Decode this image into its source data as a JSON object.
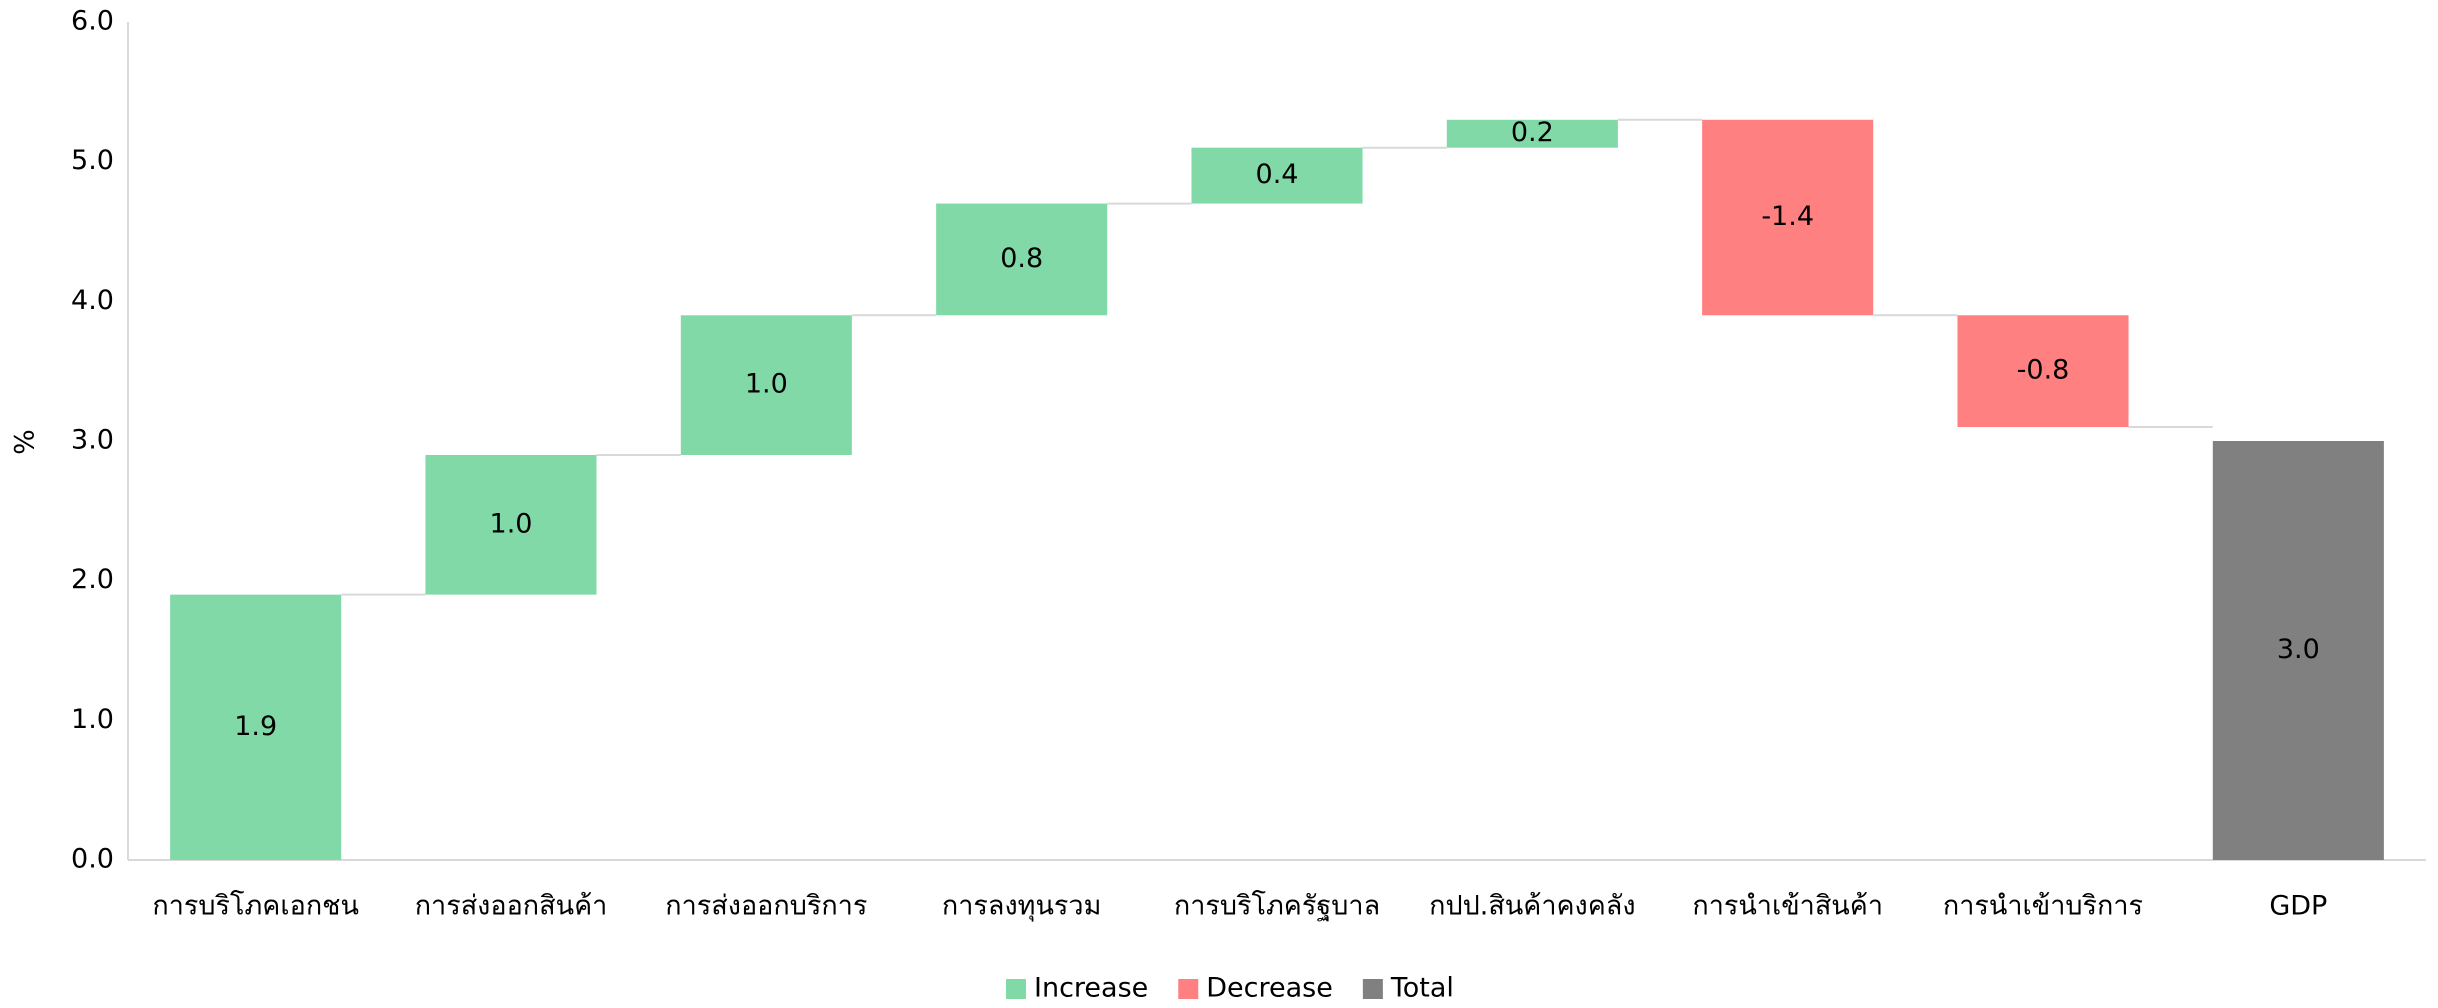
{
  "chart_data": {
    "type": "waterfall",
    "y_label": "%",
    "categories": [
      "การบริโภคเอกชน",
      "การส่งออกสินค้า",
      "การส่งออกบริการ",
      "การลงทุนรวม",
      "การบริโภครัฐบาล",
      "กปป.สินค้าคงคลัง",
      "การนำเข้าสินค้า",
      "การนำเข้าบริการ",
      "GDP"
    ],
    "values": [
      1.9,
      1.0,
      1.0,
      0.8,
      0.4,
      0.2,
      -1.4,
      -0.8,
      3.0
    ],
    "value_labels": [
      "1.9",
      "1.0",
      "1.0",
      "0.8",
      "0.4",
      "0.2",
      "-1.4",
      "-0.8",
      "3.0"
    ],
    "legend": [
      {
        "name": "Increase",
        "color": "#82d9a8"
      },
      {
        "name": "Decrease",
        "color": "#ff8080"
      },
      {
        "name": "Total",
        "color": "#808080"
      }
    ],
    "ylim": [
      0,
      6
    ],
    "yticks": [
      {
        "value": 0,
        "label": "0.0"
      },
      {
        "value": 1,
        "label": "1.0"
      },
      {
        "value": 2,
        "label": "2.0"
      },
      {
        "value": 3,
        "label": "3.0"
      },
      {
        "value": 4,
        "label": "4.0"
      },
      {
        "value": 5,
        "label": "5.0"
      },
      {
        "value": 6,
        "label": "6.0"
      }
    ],
    "grid": false
  }
}
